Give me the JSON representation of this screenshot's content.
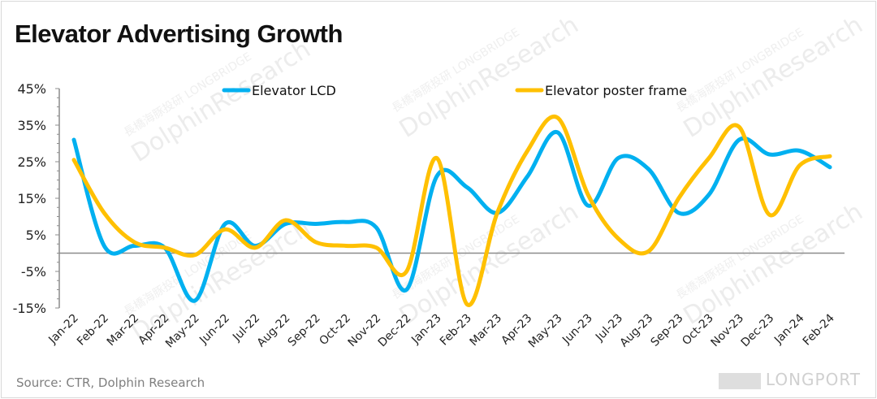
{
  "title": "Elevator Advertising Growth",
  "source": "Source: CTR,  Dolphin Research",
  "watermark": {
    "text": "DolphinResearch",
    "subtext": "長橋海豚投研 LONGBRIDGE",
    "logo": "LONGPORT"
  },
  "chart_data": {
    "type": "line",
    "title": "Elevator Advertising Growth",
    "xlabel": "",
    "ylabel": "",
    "ylim": [
      -15,
      45
    ],
    "yticks": [
      "45%",
      "35%",
      "25%",
      "15%",
      "5%",
      "-5%",
      "-15%"
    ],
    "ytick_values": [
      45,
      35,
      25,
      15,
      5,
      -5,
      -15
    ],
    "grid": false,
    "smooth": true,
    "legend_position": "top",
    "categories": [
      "Jan-22",
      "Feb-22",
      "Mar-22",
      "Apr-22",
      "May-22",
      "Jun-22",
      "Jul-22",
      "Aug-22",
      "Sep-22",
      "Oct-22",
      "Nov-22",
      "Dec-22",
      "Jan-23",
      "Feb-23",
      "Mar-23",
      "Apr-23",
      "May-23",
      "Jun-23",
      "Jul-23",
      "Aug-23",
      "Sep-23",
      "Oct-23",
      "Nov-23",
      "Dec-23",
      "Jan-24",
      "Feb-24"
    ],
    "series": [
      {
        "name": "Elevator LCD",
        "color": "#00b0f0",
        "values": [
          31,
          2,
          2,
          1.5,
          -13,
          8,
          2,
          8,
          8,
          8.5,
          7,
          -10,
          21,
          18,
          11,
          21,
          33,
          13,
          26,
          23,
          11,
          16,
          31,
          27,
          28,
          23.5
        ]
      },
      {
        "name": "Elevator poster frame",
        "color": "#ffc000",
        "values": [
          25.5,
          11,
          3,
          1.5,
          -0.5,
          6.5,
          1.5,
          9,
          3,
          2,
          1.5,
          -5,
          26,
          -14,
          11,
          28,
          37,
          16,
          4,
          0.5,
          15,
          26,
          34.5,
          10.5,
          24,
          26.5
        ]
      }
    ]
  }
}
